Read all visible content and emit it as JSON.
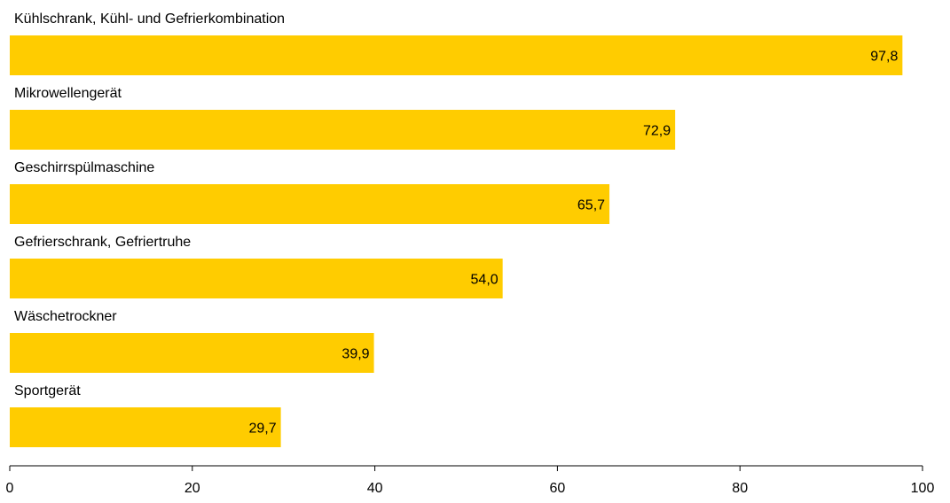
{
  "chart_data": {
    "type": "bar",
    "orientation": "horizontal",
    "title": "",
    "xlabel": "",
    "ylabel": "",
    "categories": [
      "Kühlschrank, Kühl- und Gefrierkombination",
      "Mikrowellengerät",
      "Geschirrspülmaschine",
      "Gefrierschrank, Gefriertruhe",
      "Wäschetrockner",
      "Sportgerät"
    ],
    "values": [
      97.8,
      72.9,
      65.7,
      54.0,
      39.9,
      29.7
    ],
    "value_labels": [
      "97,8",
      "72,9",
      "65,7",
      "54,0",
      "39,9",
      "29,7"
    ],
    "xlim": [
      0,
      100
    ],
    "x_ticks": [
      0,
      20,
      40,
      60,
      80,
      100
    ],
    "x_tick_labels": [
      "0",
      "20",
      "40",
      "60",
      "80",
      "100"
    ],
    "bar_color": "#FFCC00",
    "grid": false,
    "legend": "none"
  }
}
